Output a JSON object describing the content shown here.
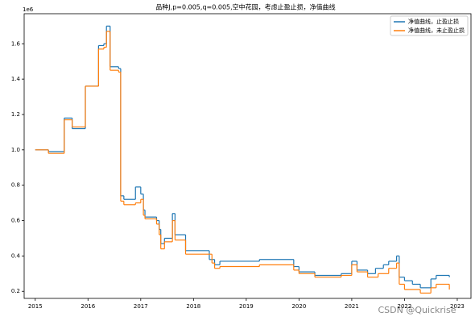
{
  "chart_data": {
    "type": "step",
    "title": "品种J,p=0.005,q=0.005,空中花园，考虑止盈止损，净值曲线",
    "y_offset_label": "1e6",
    "watermark": "CSDN @Quickrise",
    "xlim": [
      2014.79,
      2023.26
    ],
    "xticks": [
      2015,
      2016,
      2017,
      2018,
      2019,
      2020,
      2021,
      2022,
      2023
    ],
    "ylim": [
      0.16,
      1.77
    ],
    "yticks": [
      {
        "value": 0.2,
        "label": "0.2"
      },
      {
        "value": 0.4,
        "label": "0.4"
      },
      {
        "value": 0.6,
        "label": "0.6"
      },
      {
        "value": 0.8,
        "label": "0.8"
      },
      {
        "value": 1.0,
        "label": "1.0"
      },
      {
        "value": 1.2,
        "label": "1.2"
      },
      {
        "value": 1.4,
        "label": "1.4"
      },
      {
        "value": 1.6,
        "label": "1.6"
      }
    ],
    "legend": "upper right",
    "series": [
      {
        "name": "净值曲线，止盈止损",
        "color": "#1f77b4",
        "x": [
          2015.0,
          2015.25,
          2015.55,
          2015.7,
          2015.95,
          2016.2,
          2016.3,
          2016.35,
          2016.42,
          2016.58,
          2016.62,
          2016.68,
          2016.9,
          2017.0,
          2017.05,
          2017.08,
          2017.3,
          2017.35,
          2017.38,
          2017.45,
          2017.6,
          2017.65,
          2017.85,
          2018.3,
          2018.4,
          2018.5,
          2019.25,
          2019.9,
          2020.0,
          2020.3,
          2020.8,
          2021.0,
          2021.1,
          2021.3,
          2021.45,
          2021.6,
          2021.7,
          2021.85,
          2021.9,
          2022.0,
          2022.15,
          2022.3,
          2022.5,
          2022.6,
          2022.85
        ],
        "values": [
          1.0,
          0.99,
          1.18,
          1.12,
          1.36,
          1.59,
          1.6,
          1.7,
          1.47,
          1.46,
          0.74,
          0.72,
          0.79,
          0.75,
          0.66,
          0.62,
          0.6,
          0.55,
          0.47,
          0.5,
          0.64,
          0.52,
          0.43,
          0.38,
          0.35,
          0.37,
          0.38,
          0.34,
          0.31,
          0.29,
          0.3,
          0.37,
          0.32,
          0.3,
          0.33,
          0.35,
          0.37,
          0.4,
          0.28,
          0.26,
          0.24,
          0.22,
          0.27,
          0.29,
          0.28
        ]
      },
      {
        "name": "净值曲线，未止盈止损",
        "color": "#ff7f0e",
        "x": [
          2015.0,
          2015.25,
          2015.55,
          2015.7,
          2015.95,
          2016.2,
          2016.3,
          2016.35,
          2016.42,
          2016.58,
          2016.62,
          2016.68,
          2016.9,
          2017.0,
          2017.05,
          2017.08,
          2017.3,
          2017.35,
          2017.38,
          2017.45,
          2017.6,
          2017.65,
          2017.85,
          2018.35,
          2018.4,
          2018.5,
          2019.25,
          2019.9,
          2020.0,
          2020.3,
          2020.8,
          2021.0,
          2021.1,
          2021.3,
          2021.5,
          2021.7,
          2021.85,
          2021.9,
          2022.0,
          2022.3,
          2022.5,
          2022.6,
          2022.85
        ],
        "values": [
          1.0,
          0.98,
          1.17,
          1.13,
          1.36,
          1.57,
          1.58,
          1.67,
          1.45,
          1.44,
          0.71,
          0.69,
          0.7,
          0.72,
          0.63,
          0.61,
          0.58,
          0.52,
          0.44,
          0.48,
          0.6,
          0.49,
          0.41,
          0.36,
          0.33,
          0.34,
          0.35,
          0.32,
          0.3,
          0.28,
          0.29,
          0.35,
          0.31,
          0.28,
          0.3,
          0.33,
          0.36,
          0.24,
          0.21,
          0.19,
          0.22,
          0.24,
          0.21
        ]
      }
    ]
  }
}
